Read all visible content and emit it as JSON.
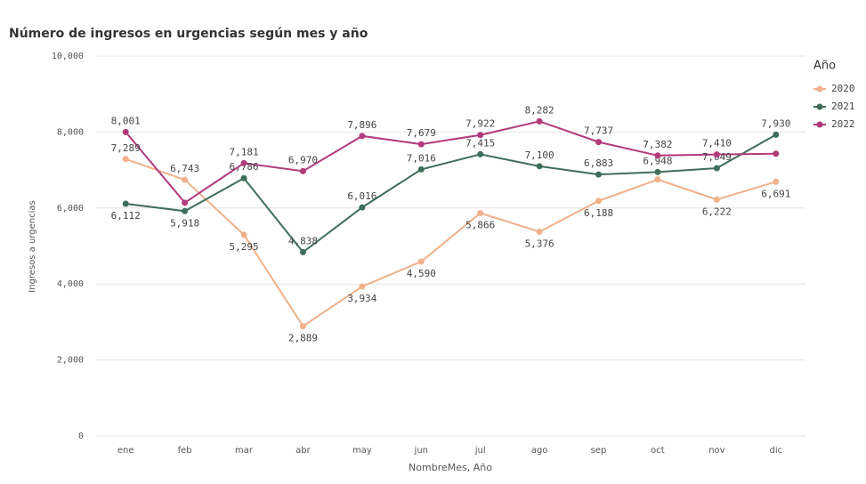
{
  "chart_data": {
    "type": "line",
    "title": "Número de ingresos en urgencias según mes y año",
    "x_label": "NombreMes, Año",
    "y_label": "Ingresos a urgencias",
    "legend_title": "Año",
    "legend": "right",
    "grid": true,
    "categories": [
      "ene",
      "feb",
      "mar",
      "abr",
      "may",
      "jun",
      "jul",
      "ago",
      "sep",
      "oct",
      "nov",
      "dic"
    ],
    "ylim": [
      0,
      10000
    ],
    "yticks": [
      0,
      {
        "value": 2000,
        "label": "2,000"
      },
      {
        "value": 4000,
        "label": "4,000"
      },
      {
        "value": 6000,
        "label": "6,000"
      },
      {
        "value": 8000,
        "label": "8,000"
      },
      {
        "value": 10000,
        "label": "10,000"
      }
    ],
    "series": [
      {
        "name": "2020",
        "color": "#f0b08a",
        "values": [
          7289,
          6743,
          5295,
          2889,
          3934,
          4590,
          5866,
          5376,
          6188,
          6750,
          6222,
          6691
        ],
        "value_labels": [
          "7,289",
          "6,743",
          "5,295",
          "2,889",
          "3,934",
          "4,590",
          "5,866",
          "5,376",
          "6,188",
          null,
          "6,222",
          "6,691"
        ]
      },
      {
        "name": "2021",
        "color": "#3e6e5a",
        "values": [
          6112,
          5918,
          6786,
          4838,
          6016,
          7016,
          7415,
          7100,
          6883,
          6948,
          7049,
          7930
        ],
        "value_labels": [
          "6,112",
          "5,918",
          "6,786",
          "4,838",
          "6,016",
          "7,016",
          "7,415",
          "7,100",
          "6,883",
          "6,948",
          "7,049",
          "7,930"
        ]
      },
      {
        "name": "2022",
        "color": "#b23a7a",
        "values": [
          8001,
          6140,
          7181,
          6970,
          7896,
          7679,
          7922,
          8282,
          7737,
          7382,
          7410,
          7430
        ],
        "value_labels": [
          "8,001",
          null,
          "7,181",
          "6,970",
          "7,896",
          "7,679",
          "7,922",
          "8,282",
          "7,737",
          "7,382",
          "7,410",
          null
        ]
      }
    ]
  }
}
